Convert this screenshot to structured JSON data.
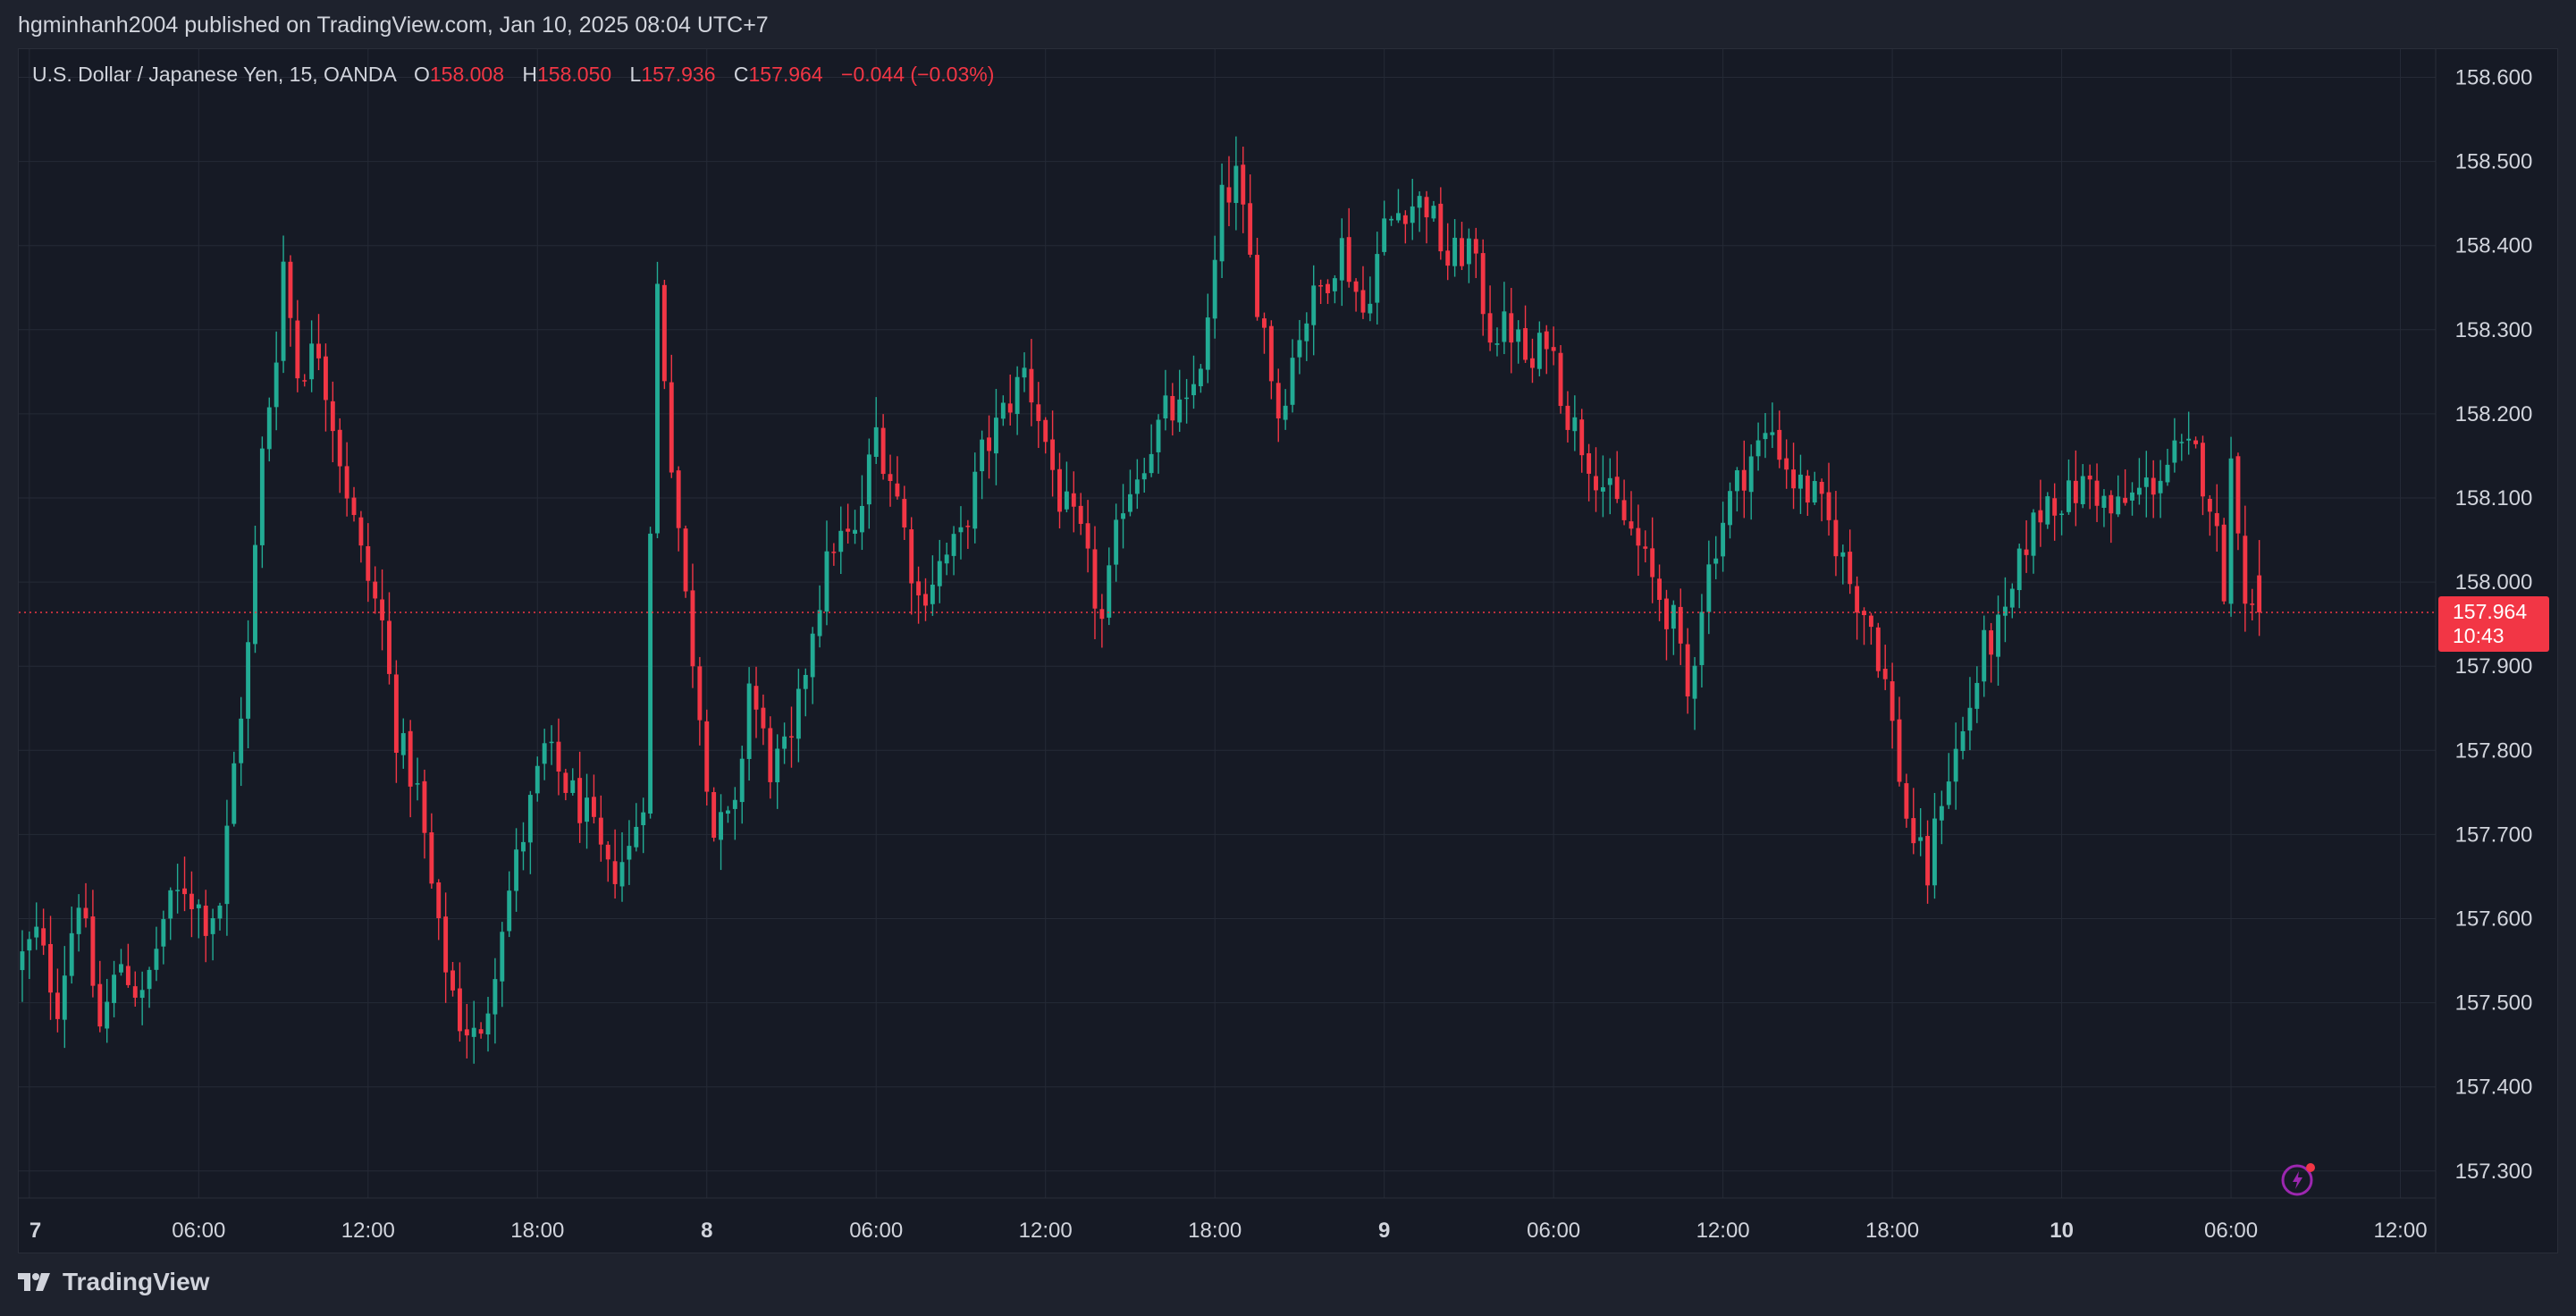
{
  "header": {
    "published": "hgminhanh2004 published on TradingView.com, Jan 10, 2025 08:04 UTC+7"
  },
  "legend": {
    "symbol": "U.S. Dollar / Japanese Yen, 15, OANDA",
    "o_label": "O",
    "o_value": "158.008",
    "h_label": "H",
    "h_value": "158.050",
    "l_label": "L",
    "l_value": "157.936",
    "c_label": "C",
    "c_value": "157.964",
    "change": "−0.044 (−0.03%)"
  },
  "last_price": {
    "price": "157.964",
    "countdown": "10:43"
  },
  "footer": {
    "brand": "TradingView"
  },
  "colors": {
    "up": "#22ab94",
    "down": "#f23645",
    "background": "#161a25",
    "grid": "#252a36",
    "text": "#d1d4dc"
  },
  "icons": [
    "tradingview-logo-icon",
    "lightning-icon"
  ],
  "chart_data": {
    "type": "candlestick",
    "symbol": "USDJPY",
    "timeframe": "15",
    "y_axis": {
      "ticks": [
        "158.600",
        "158.500",
        "158.400",
        "158.300",
        "158.200",
        "158.100",
        "158.000",
        "157.900",
        "157.800",
        "157.700",
        "157.600",
        "157.500",
        "157.400",
        "157.300"
      ],
      "range": [
        157.28,
        158.62
      ]
    },
    "x_axis": {
      "ticks": [
        {
          "label": "7",
          "t": 0,
          "bold": true
        },
        {
          "label": "06:00",
          "t": 24
        },
        {
          "label": "12:00",
          "t": 48
        },
        {
          "label": "18:00",
          "t": 72
        },
        {
          "label": "8",
          "t": 96,
          "bold": true
        },
        {
          "label": "06:00",
          "t": 120
        },
        {
          "label": "12:00",
          "t": 144
        },
        {
          "label": "18:00",
          "t": 168
        },
        {
          "label": "9",
          "t": 192,
          "bold": true
        },
        {
          "label": "06:00",
          "t": 216
        },
        {
          "label": "12:00",
          "t": 240
        },
        {
          "label": "18:00",
          "t": 264
        },
        {
          "label": "10",
          "t": 288,
          "bold": true
        },
        {
          "label": "06:00",
          "t": 312
        },
        {
          "label": "12:00",
          "t": 336
        }
      ],
      "range": [
        -1.5,
        341
      ]
    },
    "anchors": [
      [
        -1,
        157.54
      ],
      [
        2,
        157.58
      ],
      [
        5,
        157.5
      ],
      [
        8,
        157.63
      ],
      [
        11,
        157.47
      ],
      [
        14,
        157.55
      ],
      [
        17,
        157.5
      ],
      [
        20,
        157.6
      ],
      [
        23,
        157.64
      ],
      [
        26,
        157.6
      ],
      [
        28,
        157.62
      ],
      [
        30,
        157.78
      ],
      [
        32,
        157.92
      ],
      [
        34,
        158.15
      ],
      [
        36,
        158.28
      ],
      [
        37,
        158.38
      ],
      [
        39,
        158.25
      ],
      [
        42,
        158.28
      ],
      [
        45,
        158.15
      ],
      [
        48,
        158.03
      ],
      [
        51,
        157.95
      ],
      [
        53,
        157.82
      ],
      [
        56,
        157.75
      ],
      [
        59,
        157.58
      ],
      [
        62,
        157.48
      ],
      [
        65,
        157.45
      ],
      [
        68,
        157.6
      ],
      [
        71,
        157.7
      ],
      [
        74,
        157.8
      ],
      [
        77,
        157.76
      ],
      [
        80,
        157.72
      ],
      [
        83,
        157.65
      ],
      [
        86,
        157.68
      ],
      [
        88,
        157.75
      ],
      [
        90,
        158.35
      ],
      [
        92,
        158.15
      ],
      [
        94,
        157.98
      ],
      [
        96,
        157.85
      ],
      [
        98,
        157.7
      ],
      [
        101,
        157.72
      ],
      [
        103,
        157.88
      ],
      [
        106,
        157.78
      ],
      [
        109,
        157.8
      ],
      [
        112,
        157.95
      ],
      [
        115,
        158.05
      ],
      [
        118,
        158.05
      ],
      [
        121,
        158.18
      ],
      [
        124,
        158.1
      ],
      [
        127,
        157.98
      ],
      [
        130,
        158.02
      ],
      [
        133,
        158.05
      ],
      [
        136,
        158.15
      ],
      [
        139,
        158.2
      ],
      [
        142,
        158.25
      ],
      [
        144,
        158.2
      ],
      [
        147,
        158.1
      ],
      [
        150,
        158.05
      ],
      [
        153,
        157.95
      ],
      [
        156,
        158.1
      ],
      [
        159,
        158.15
      ],
      [
        162,
        158.2
      ],
      [
        165,
        158.2
      ],
      [
        168,
        158.3
      ],
      [
        170,
        158.45
      ],
      [
        172,
        158.48
      ],
      [
        174,
        158.38
      ],
      [
        176,
        158.3
      ],
      [
        178,
        158.2
      ],
      [
        181,
        158.3
      ],
      [
        184,
        158.35
      ],
      [
        187,
        158.4
      ],
      [
        190,
        158.32
      ],
      [
        193,
        158.42
      ],
      [
        196,
        158.45
      ],
      [
        199,
        158.45
      ],
      [
        202,
        158.38
      ],
      [
        205,
        158.4
      ],
      [
        208,
        158.3
      ],
      [
        211,
        158.3
      ],
      [
        214,
        158.25
      ],
      [
        216,
        158.3
      ],
      [
        219,
        158.2
      ],
      [
        222,
        158.15
      ],
      [
        225,
        158.1
      ],
      [
        228,
        158.06
      ],
      [
        231,
        158.0
      ],
      [
        234,
        157.95
      ],
      [
        236,
        157.86
      ],
      [
        238,
        157.98
      ],
      [
        240,
        158.05
      ],
      [
        242,
        158.1
      ],
      [
        245,
        158.15
      ],
      [
        248,
        158.18
      ],
      [
        251,
        158.12
      ],
      [
        254,
        158.1
      ],
      [
        257,
        158.05
      ],
      [
        259,
        158.0
      ],
      [
        262,
        157.95
      ],
      [
        264,
        157.88
      ],
      [
        267,
        157.72
      ],
      [
        270,
        157.65
      ],
      [
        272,
        157.75
      ],
      [
        275,
        157.82
      ],
      [
        278,
        157.92
      ],
      [
        281,
        157.95
      ],
      [
        284,
        158.05
      ],
      [
        287,
        158.1
      ],
      [
        290,
        158.1
      ],
      [
        293,
        158.12
      ],
      [
        296,
        158.08
      ],
      [
        299,
        158.1
      ],
      [
        302,
        158.12
      ],
      [
        305,
        158.15
      ],
      [
        308,
        158.15
      ],
      [
        310,
        158.1
      ],
      [
        312,
        158.0
      ],
      [
        313,
        158.14
      ],
      [
        314,
        158.08
      ],
      [
        315,
        157.99
      ],
      [
        316,
        157.964
      ]
    ],
    "last": {
      "open": 158.008,
      "high": 158.05,
      "low": 157.936,
      "close": 157.964
    },
    "last_price_line": 157.964
  }
}
